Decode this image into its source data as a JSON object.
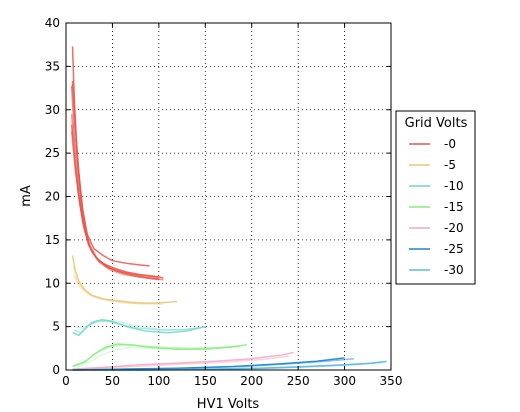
{
  "chart_data": {
    "type": "line",
    "title": "",
    "xlabel": "HV1 Volts",
    "ylabel": "mA",
    "xlim": [
      0,
      350
    ],
    "ylim": [
      0,
      40
    ],
    "xticks": [
      0,
      50,
      100,
      150,
      200,
      250,
      300,
      350
    ],
    "yticks": [
      0,
      5,
      10,
      15,
      20,
      25,
      30,
      35,
      40
    ],
    "grid": true,
    "legend": {
      "title": "Grid Volts",
      "placement": "outside-right"
    },
    "series": [
      {
        "name": "-0",
        "color": "#e8544a",
        "traces": [
          {
            "opacity": 0.85,
            "points": [
              [
                7,
                37.3
              ],
              [
                9,
                31
              ],
              [
                12,
                25
              ],
              [
                16,
                20
              ],
              [
                20,
                16.5
              ],
              [
                25,
                14.3
              ],
              [
                32,
                13
              ],
              [
                40,
                12.3
              ],
              [
                50,
                11.8
              ],
              [
                65,
                11.3
              ],
              [
                80,
                11
              ],
              [
                95,
                10.8
              ],
              [
                105,
                10.6
              ]
            ]
          },
          {
            "opacity": 0.85,
            "points": [
              [
                7,
                33.3
              ],
              [
                10,
                28
              ],
              [
                14,
                22.5
              ],
              [
                18,
                18.5
              ],
              [
                23,
                15.6
              ],
              [
                30,
                14
              ],
              [
                40,
                13.2
              ],
              [
                50,
                12.6
              ],
              [
                65,
                12.3
              ],
              [
                80,
                12.1
              ],
              [
                90,
                12
              ]
            ]
          },
          {
            "opacity": 0.75,
            "points": [
              [
                6,
                28.3
              ],
              [
                9,
                24.5
              ],
              [
                13,
                20.5
              ],
              [
                18,
                17
              ],
              [
                24,
                14.5
              ],
              [
                32,
                13
              ],
              [
                42,
                12
              ],
              [
                55,
                11.4
              ],
              [
                70,
                11
              ],
              [
                85,
                10.7
              ],
              [
                100,
                10.5
              ]
            ]
          },
          {
            "opacity": 0.7,
            "points": [
              [
                6,
                32.8
              ],
              [
                9,
                27
              ],
              [
                13,
                22
              ],
              [
                17,
                18.3
              ],
              [
                22,
                15.4
              ],
              [
                28,
                13.6
              ],
              [
                36,
                12.5
              ],
              [
                48,
                11.7
              ],
              [
                60,
                11.3
              ],
              [
                75,
                11
              ],
              [
                90,
                10.8
              ],
              [
                100,
                10.7
              ]
            ]
          },
          {
            "opacity": 0.6,
            "points": [
              [
                6,
                29.5
              ],
              [
                10,
                24
              ],
              [
                14,
                20
              ],
              [
                19,
                17
              ],
              [
                26,
                14.3
              ],
              [
                34,
                12.8
              ],
              [
                45,
                11.8
              ],
              [
                60,
                11.2
              ],
              [
                75,
                10.8
              ],
              [
                95,
                10.5
              ],
              [
                105,
                10.4
              ]
            ]
          },
          {
            "opacity": 0.55,
            "points": [
              [
                6,
                27.5
              ],
              [
                10,
                23
              ],
              [
                15,
                19
              ],
              [
                20,
                16
              ],
              [
                27,
                13.8
              ],
              [
                36,
                12.4
              ],
              [
                48,
                11.5
              ],
              [
                62,
                11
              ],
              [
                80,
                10.7
              ],
              [
                100,
                10.4
              ]
            ]
          }
        ]
      },
      {
        "name": "-5",
        "color": "#e9c87a",
        "traces": [
          {
            "opacity": 0.85,
            "points": [
              [
                7,
                13.2
              ],
              [
                10,
                11.5
              ],
              [
                14,
                10.2
              ],
              [
                20,
                9.3
              ],
              [
                28,
                8.6
              ],
              [
                40,
                8.2
              ],
              [
                55,
                8
              ],
              [
                70,
                7.8
              ],
              [
                90,
                7.7
              ],
              [
                110,
                7.8
              ],
              [
                120,
                7.9
              ]
            ]
          },
          {
            "opacity": 0.5,
            "points": [
              [
                8,
                12
              ],
              [
                12,
                10.4
              ],
              [
                18,
                9.4
              ],
              [
                26,
                8.7
              ],
              [
                38,
                8.2
              ],
              [
                55,
                7.9
              ],
              [
                75,
                7.7
              ],
              [
                95,
                7.7
              ],
              [
                110,
                7.8
              ]
            ]
          },
          {
            "opacity": 0.35,
            "points": [
              [
                8,
                11
              ],
              [
                13,
                9.8
              ],
              [
                20,
                9
              ],
              [
                30,
                8.4
              ],
              [
                45,
                8
              ],
              [
                65,
                7.7
              ],
              [
                85,
                7.6
              ],
              [
                105,
                7.6
              ]
            ]
          }
        ]
      },
      {
        "name": "-10",
        "color": "#6fd8c3",
        "traces": [
          {
            "opacity": 0.85,
            "points": [
              [
                7,
                4.3
              ],
              [
                14,
                4
              ],
              [
                20,
                4.7
              ],
              [
                28,
                5.5
              ],
              [
                38,
                5.8
              ],
              [
                50,
                5.6
              ],
              [
                65,
                5
              ],
              [
                85,
                4.5
              ],
              [
                110,
                4.3
              ],
              [
                130,
                4.5
              ],
              [
                150,
                5
              ]
            ]
          },
          {
            "opacity": 0.55,
            "points": [
              [
                9,
                4.6
              ],
              [
                16,
                4.3
              ],
              [
                24,
                5.1
              ],
              [
                34,
                5.6
              ],
              [
                46,
                5.6
              ],
              [
                60,
                5.2
              ],
              [
                80,
                4.8
              ],
              [
                105,
                4.6
              ],
              [
                130,
                4.7
              ],
              [
                145,
                4.9
              ]
            ]
          },
          {
            "opacity": 0.35,
            "points": [
              [
                10,
                5
              ],
              [
                18,
                4.8
              ],
              [
                28,
                5.4
              ],
              [
                40,
                5.8
              ],
              [
                55,
                5.6
              ],
              [
                75,
                5.1
              ],
              [
                100,
                4.7
              ],
              [
                125,
                4.6
              ],
              [
                140,
                4.8
              ]
            ]
          }
        ]
      },
      {
        "name": "-15",
        "color": "#86ee7e",
        "traces": [
          {
            "opacity": 0.85,
            "points": [
              [
                7,
                0.4
              ],
              [
                20,
                0.9
              ],
              [
                30,
                1.8
              ],
              [
                42,
                2.6
              ],
              [
                55,
                3
              ],
              [
                70,
                2.9
              ],
              [
                90,
                2.6
              ],
              [
                120,
                2.4
              ],
              [
                150,
                2.4
              ],
              [
                175,
                2.6
              ],
              [
                195,
                2.9
              ]
            ]
          },
          {
            "opacity": 0.5,
            "points": [
              [
                8,
                0.5
              ],
              [
                22,
                1.1
              ],
              [
                35,
                2.1
              ],
              [
                48,
                2.7
              ],
              [
                62,
                2.9
              ],
              [
                80,
                2.8
              ],
              [
                105,
                2.6
              ],
              [
                135,
                2.5
              ],
              [
                165,
                2.6
              ],
              [
                190,
                2.8
              ]
            ]
          },
          {
            "opacity": 0.3,
            "points": [
              [
                10,
                0.3
              ],
              [
                25,
                0.9
              ],
              [
                40,
                1.8
              ],
              [
                55,
                2.4
              ],
              [
                75,
                2.6
              ],
              [
                100,
                2.5
              ],
              [
                130,
                2.4
              ],
              [
                160,
                2.5
              ],
              [
                185,
                2.7
              ]
            ]
          }
        ]
      },
      {
        "name": "-20",
        "color": "#f4a6c2",
        "traces": [
          {
            "opacity": 0.85,
            "points": [
              [
                7,
                0.1
              ],
              [
                40,
                0.3
              ],
              [
                80,
                0.6
              ],
              [
                120,
                0.8
              ],
              [
                160,
                1
              ],
              [
                200,
                1.3
              ],
              [
                230,
                1.7
              ],
              [
                245,
                2
              ]
            ]
          },
          {
            "opacity": 0.5,
            "points": [
              [
                10,
                0.1
              ],
              [
                50,
                0.3
              ],
              [
                90,
                0.5
              ],
              [
                130,
                0.7
              ],
              [
                170,
                0.9
              ],
              [
                210,
                1.2
              ],
              [
                240,
                1.6
              ]
            ]
          }
        ]
      },
      {
        "name": "-25",
        "color": "#1a86d0",
        "traces": [
          {
            "opacity": 0.9,
            "points": [
              [
                7,
                0
              ],
              [
                60,
                0.1
              ],
              [
                120,
                0.2
              ],
              [
                180,
                0.4
              ],
              [
                230,
                0.7
              ],
              [
                270,
                1
              ],
              [
                300,
                1.4
              ]
            ]
          },
          {
            "opacity": 0.5,
            "points": [
              [
                10,
                0
              ],
              [
                70,
                0.1
              ],
              [
                130,
                0.2
              ],
              [
                190,
                0.4
              ],
              [
                240,
                0.7
              ],
              [
                280,
                1
              ],
              [
                310,
                1.3
              ]
            ]
          }
        ]
      },
      {
        "name": "-30",
        "color": "#5ab8e8",
        "traces": [
          {
            "opacity": 0.85,
            "points": [
              [
                7,
                0
              ],
              [
                80,
                0
              ],
              [
                150,
                0.1
              ],
              [
                210,
                0.2
              ],
              [
                260,
                0.4
              ],
              [
                300,
                0.6
              ],
              [
                330,
                0.8
              ],
              [
                345,
                1
              ]
            ]
          },
          {
            "opacity": 0.5,
            "points": [
              [
                10,
                0
              ],
              [
                90,
                0
              ],
              [
                160,
                0.1
              ],
              [
                220,
                0.2
              ],
              [
                270,
                0.4
              ],
              [
                310,
                0.6
              ],
              [
                340,
                0.9
              ]
            ]
          },
          {
            "opacity": 0.3,
            "points": [
              [
                12,
                0
              ],
              [
                100,
                0
              ],
              [
                170,
                0.1
              ],
              [
                230,
                0.3
              ],
              [
                280,
                0.5
              ],
              [
                320,
                0.7
              ],
              [
                345,
                0.9
              ]
            ]
          }
        ]
      }
    ]
  }
}
